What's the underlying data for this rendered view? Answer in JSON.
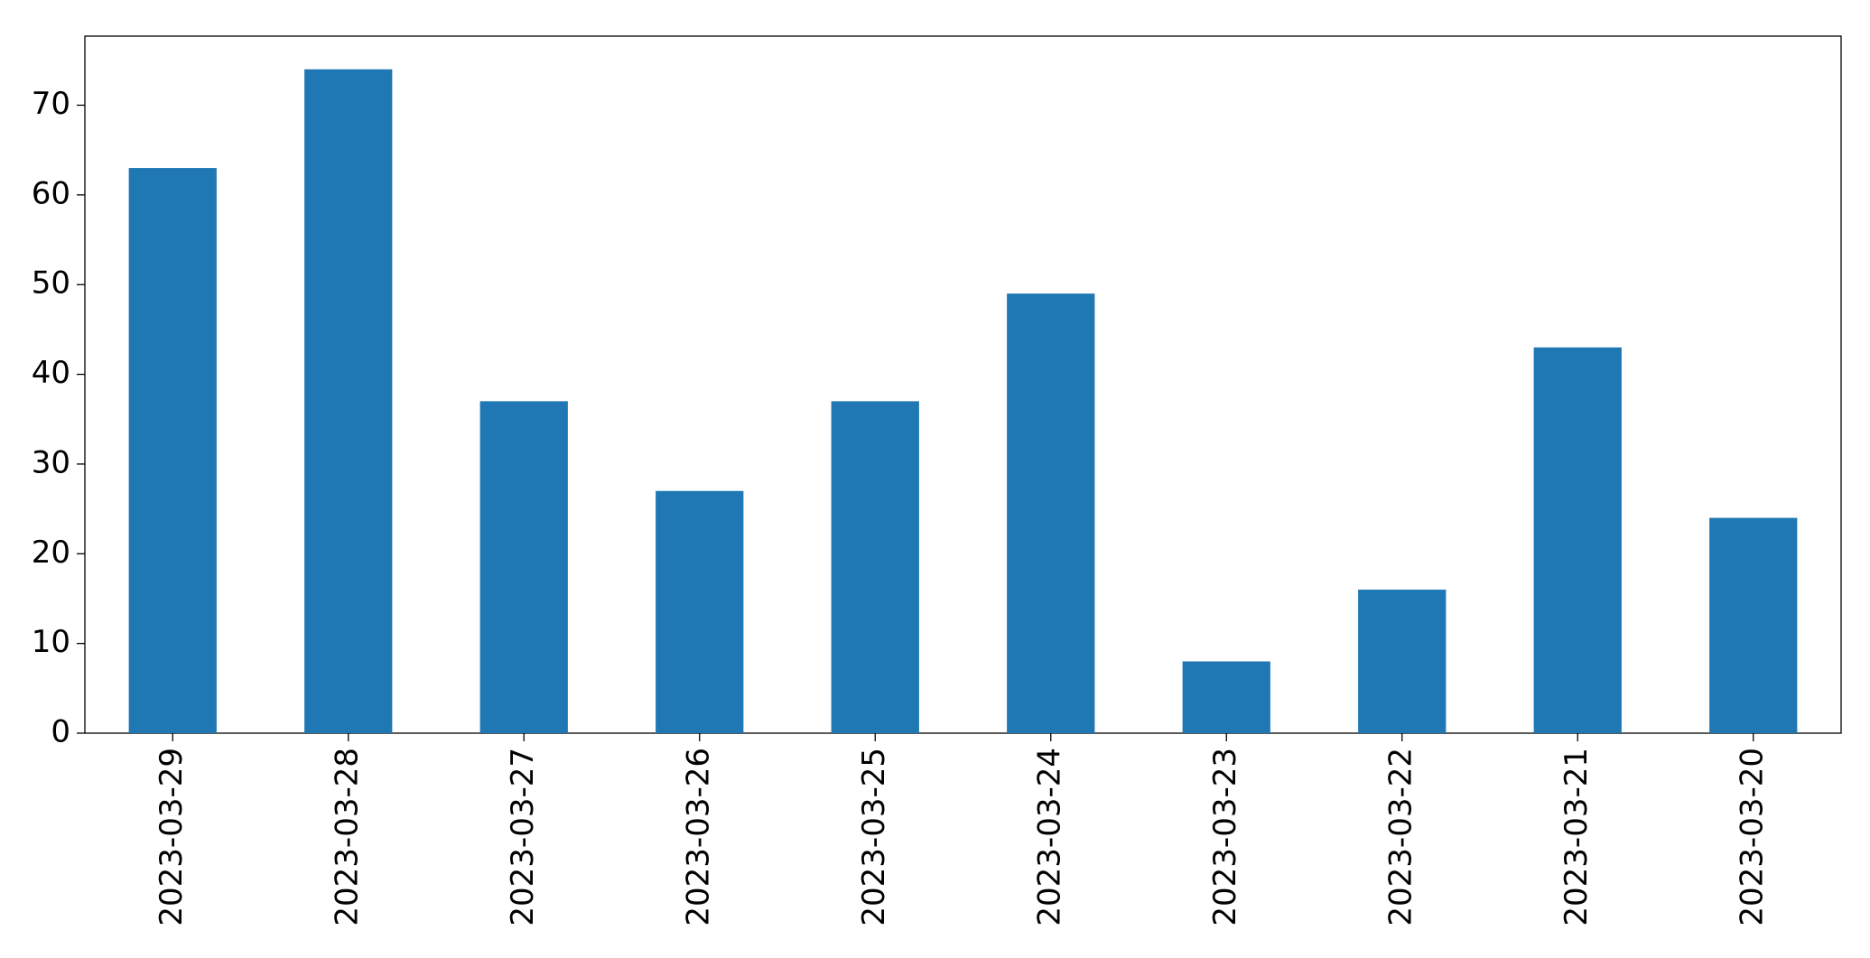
{
  "chart_data": {
    "type": "bar",
    "categories": [
      "2023-03-29",
      "2023-03-28",
      "2023-03-27",
      "2023-03-26",
      "2023-03-25",
      "2023-03-24",
      "2023-03-23",
      "2023-03-22",
      "2023-03-21",
      "2023-03-20"
    ],
    "values": [
      63,
      74,
      37,
      27,
      37,
      49,
      8,
      16,
      43,
      24
    ],
    "color": "#1f77b4",
    "ylim": [
      0,
      77.7
    ],
    "yticks": [
      0,
      10,
      20,
      30,
      40,
      50,
      60,
      70
    ],
    "grid": false
  }
}
